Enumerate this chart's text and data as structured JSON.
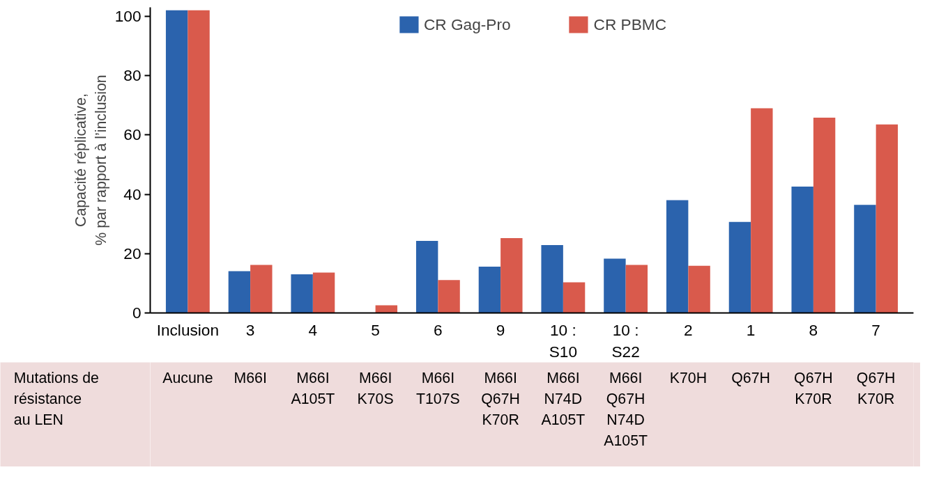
{
  "chart_data": {
    "type": "bar",
    "ylabel": "Capacité réplicative,\n% par rapport à l’inclusion",
    "categories": [
      "Inclusion",
      "3",
      "4",
      "5",
      "6",
      "9",
      "10 :\nS10",
      "10 :\nS22",
      "2",
      "1",
      "8",
      "7"
    ],
    "series": [
      {
        "name": "CR Gag-Pro",
        "color": "#2b63ad",
        "values": [
          102,
          14.1,
          13.0,
          0,
          24.3,
          15.6,
          22.9,
          18.3,
          38.0,
          30.7,
          42.6,
          36.4
        ]
      },
      {
        "name": "CR PBMC",
        "color": "#d95a4c",
        "values": [
          102,
          16.2,
          13.6,
          2.6,
          11.1,
          25.2,
          10.3,
          16.2,
          15.9,
          69.0,
          65.8,
          63.5
        ]
      }
    ],
    "ylim": [
      0,
      103
    ],
    "yticks": [
      0,
      20,
      40,
      60,
      80,
      100
    ],
    "grid": false,
    "legend": "top",
    "annotations": [
      "Mutations de\nrésistance\nau LEN",
      "Aucune",
      "M66I",
      "M66I\nA105T",
      "M66I\nK70S",
      "M66I\nT107S",
      "M66I\nQ67H\nK70R",
      "M66I\nN74D\nA105T",
      "M66I\nQ67H\nN74D\nA105T",
      "K70H",
      "Q67H",
      "Q67H\nK70R",
      "Q67H\nK70R"
    ]
  }
}
